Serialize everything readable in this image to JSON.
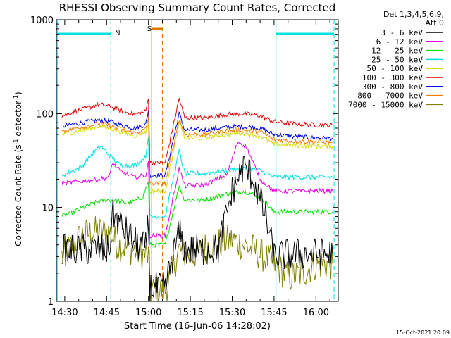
{
  "chart_data": {
    "type": "line",
    "title": "RHESSI Observing Summary Count Rates, Corrected",
    "xlabel": "Start Time (16-Jun-06 14:28:02)",
    "ylabel_main": "Corrected Count Rate (s",
    "ylabel_sup1": "-1",
    "ylabel_mid": " detector",
    "ylabel_sup2": "-1",
    "ylabel_end": ")",
    "timestamp": "15-Oct-2021 20:09",
    "yscale": "log",
    "ylim": [
      1,
      1000
    ],
    "xlim": [
      "14:27",
      "16:08"
    ],
    "yticks": [
      "1",
      "10",
      "100",
      "1000"
    ],
    "xticks": [
      "14:30",
      "14:45",
      "15:00",
      "15:15",
      "15:30",
      "15:45",
      "16:00"
    ],
    "legend_header": [
      "Det 1,3,4,5,6,9,",
      "Att 0"
    ],
    "legend_placement": "right",
    "flags": [
      {
        "label": "N",
        "color": "#00e0e0"
      },
      {
        "label": "S",
        "color": "#e07800"
      }
    ],
    "series": [
      {
        "name": "3 - 6 keV",
        "color": "#000000",
        "points": [
          [
            "14:29",
            3.5
          ],
          [
            "14:35",
            3.5
          ],
          [
            "14:42",
            3.6
          ],
          [
            "14:46",
            3.4
          ],
          [
            "14:47",
            9
          ],
          [
            "14:50",
            6.5
          ],
          [
            "14:53",
            5
          ],
          [
            "14:56",
            4
          ],
          [
            "14:59",
            3.7
          ],
          [
            "15:00",
            7
          ],
          [
            "15:00.5",
            1.4
          ],
          [
            "15:06",
            1.4
          ],
          [
            "15:11",
            5.5
          ],
          [
            "15:13",
            3.5
          ],
          [
            "15:20",
            3.5
          ],
          [
            "15:25",
            3.6
          ],
          [
            "15:30",
            15
          ],
          [
            "15:34",
            27
          ],
          [
            "15:37",
            22
          ],
          [
            "15:42",
            8
          ],
          [
            "15:45",
            3
          ],
          [
            "15:52",
            3.2
          ],
          [
            "16:00",
            3.2
          ],
          [
            "16:06",
            3.2
          ]
        ]
      },
      {
        "name": "6 - 12 keV",
        "color": "#e000e0",
        "points": [
          [
            "14:29",
            18
          ],
          [
            "14:36",
            19
          ],
          [
            "14:42",
            20
          ],
          [
            "14:46",
            21
          ],
          [
            "14:47",
            30
          ],
          [
            "14:50",
            24
          ],
          [
            "14:55",
            21
          ],
          [
            "14:59",
            22
          ],
          [
            "15:00",
            30
          ],
          [
            "15:00.5",
            5
          ],
          [
            "15:06",
            5
          ],
          [
            "15:11",
            26
          ],
          [
            "15:13",
            17
          ],
          [
            "15:20",
            17.5
          ],
          [
            "15:28",
            22
          ],
          [
            "15:32",
            50
          ],
          [
            "15:35",
            45
          ],
          [
            "15:40",
            20
          ],
          [
            "15:45",
            15
          ],
          [
            "15:52",
            15
          ],
          [
            "16:00",
            15
          ],
          [
            "16:06",
            15
          ]
        ]
      },
      {
        "name": "12 - 25 keV",
        "color": "#00e000",
        "points": [
          [
            "14:29",
            8
          ],
          [
            "14:35",
            9.5
          ],
          [
            "14:40",
            11
          ],
          [
            "14:44",
            12
          ],
          [
            "14:48",
            12
          ],
          [
            "14:53",
            11
          ],
          [
            "14:58",
            13
          ],
          [
            "15:00",
            19
          ],
          [
            "15:00.5",
            4
          ],
          [
            "15:06",
            4
          ],
          [
            "15:11",
            17
          ],
          [
            "15:13",
            12
          ],
          [
            "15:20",
            12
          ],
          [
            "15:28",
            14
          ],
          [
            "15:34",
            15
          ],
          [
            "15:40",
            13
          ],
          [
            "15:45",
            9
          ],
          [
            "15:52",
            9
          ],
          [
            "16:00",
            9
          ],
          [
            "16:06",
            9
          ]
        ]
      },
      {
        "name": "25 - 50 keV",
        "color": "#00e0e0",
        "points": [
          [
            "14:29",
            22
          ],
          [
            "14:36",
            27
          ],
          [
            "14:40",
            38
          ],
          [
            "14:43",
            45
          ],
          [
            "14:46",
            36
          ],
          [
            "14:50",
            28
          ],
          [
            "14:55",
            28
          ],
          [
            "14:59",
            35
          ],
          [
            "15:00",
            60
          ],
          [
            "15:00.5",
            8
          ],
          [
            "15:06",
            8
          ],
          [
            "15:11",
            40
          ],
          [
            "15:13",
            23
          ],
          [
            "15:20",
            23
          ],
          [
            "15:28",
            25
          ],
          [
            "15:34",
            26
          ],
          [
            "15:40",
            25
          ],
          [
            "15:45",
            21
          ],
          [
            "15:52",
            21
          ],
          [
            "16:00",
            21
          ],
          [
            "16:06",
            21
          ]
        ]
      },
      {
        "name": "50 - 100 keV",
        "color": "#d8d800",
        "points": [
          [
            "14:29",
            60
          ],
          [
            "14:36",
            66
          ],
          [
            "14:42",
            73
          ],
          [
            "14:46",
            70
          ],
          [
            "14:50",
            64
          ],
          [
            "14:55",
            58
          ],
          [
            "14:59",
            64
          ],
          [
            "15:00",
            80
          ],
          [
            "15:00.5",
            15
          ],
          [
            "15:06",
            15
          ],
          [
            "15:11",
            78
          ],
          [
            "15:13",
            55
          ],
          [
            "15:20",
            55
          ],
          [
            "15:28",
            60
          ],
          [
            "15:34",
            62
          ],
          [
            "15:40",
            58
          ],
          [
            "15:45",
            47
          ],
          [
            "15:52",
            46
          ],
          [
            "16:00",
            45
          ],
          [
            "16:06",
            45
          ]
        ]
      },
      {
        "name": "100 - 300 keV",
        "color": "#e00000",
        "points": [
          [
            "14:29",
            95
          ],
          [
            "14:36",
            110
          ],
          [
            "14:42",
            125
          ],
          [
            "14:46",
            120
          ],
          [
            "14:50",
            108
          ],
          [
            "14:55",
            98
          ],
          [
            "14:59",
            105
          ],
          [
            "15:00",
            150
          ],
          [
            "15:00.5",
            30
          ],
          [
            "15:06",
            30
          ],
          [
            "15:11",
            145
          ],
          [
            "15:13",
            90
          ],
          [
            "15:20",
            90
          ],
          [
            "15:28",
            98
          ],
          [
            "15:34",
            100
          ],
          [
            "15:40",
            95
          ],
          [
            "15:45",
            82
          ],
          [
            "15:52",
            78
          ],
          [
            "16:00",
            76
          ],
          [
            "16:06",
            75
          ]
        ]
      },
      {
        "name": "300 - 800 keV",
        "color": "#0000e0",
        "points": [
          [
            "14:29",
            73
          ],
          [
            "14:36",
            80
          ],
          [
            "14:42",
            85
          ],
          [
            "14:46",
            83
          ],
          [
            "14:50",
            76
          ],
          [
            "14:55",
            70
          ],
          [
            "14:59",
            76
          ],
          [
            "15:00",
            110
          ],
          [
            "15:00.5",
            22
          ],
          [
            "15:06",
            22
          ],
          [
            "15:11",
            100
          ],
          [
            "15:13",
            67
          ],
          [
            "15:20",
            67
          ],
          [
            "15:28",
            72
          ],
          [
            "15:34",
            73
          ],
          [
            "15:40",
            70
          ],
          [
            "15:45",
            60
          ],
          [
            "15:52",
            57
          ],
          [
            "16:00",
            55
          ],
          [
            "16:06",
            55
          ]
        ]
      },
      {
        "name": "800 - 7000 keV",
        "color": "#f08000",
        "points": [
          [
            "14:29",
            65
          ],
          [
            "14:36",
            72
          ],
          [
            "14:42",
            78
          ],
          [
            "14:46",
            75
          ],
          [
            "14:50",
            68
          ],
          [
            "14:55",
            62
          ],
          [
            "14:59",
            68
          ],
          [
            "15:00",
            90
          ],
          [
            "15:00.5",
            18
          ],
          [
            "15:06",
            18
          ],
          [
            "15:11",
            88
          ],
          [
            "15:13",
            60
          ],
          [
            "15:20",
            60
          ],
          [
            "15:28",
            66
          ],
          [
            "15:34",
            67
          ],
          [
            "15:40",
            64
          ],
          [
            "15:45",
            53
          ],
          [
            "15:52",
            51
          ],
          [
            "16:00",
            50
          ],
          [
            "16:06",
            50
          ]
        ]
      },
      {
        "name": "7000 - 15000 keV",
        "color": "#808000",
        "points": [
          [
            "14:29",
            3
          ],
          [
            "14:33",
            4
          ],
          [
            "14:36",
            5
          ],
          [
            "14:40",
            5.5
          ],
          [
            "14:46",
            5.5
          ],
          [
            "14:49",
            4
          ],
          [
            "14:55",
            3.5
          ],
          [
            "15:00",
            3
          ],
          [
            "15:00.5",
            1.3
          ],
          [
            "15:06",
            1.3
          ],
          [
            "15:11",
            3.5
          ],
          [
            "15:15",
            3
          ],
          [
            "15:22",
            4
          ],
          [
            "15:30",
            4.5
          ],
          [
            "15:38",
            3.5
          ],
          [
            "15:45",
            2.5
          ],
          [
            "15:50",
            1.8
          ],
          [
            "15:55",
            2
          ],
          [
            "16:00",
            2.5
          ],
          [
            "16:06",
            2.5
          ]
        ]
      }
    ]
  }
}
